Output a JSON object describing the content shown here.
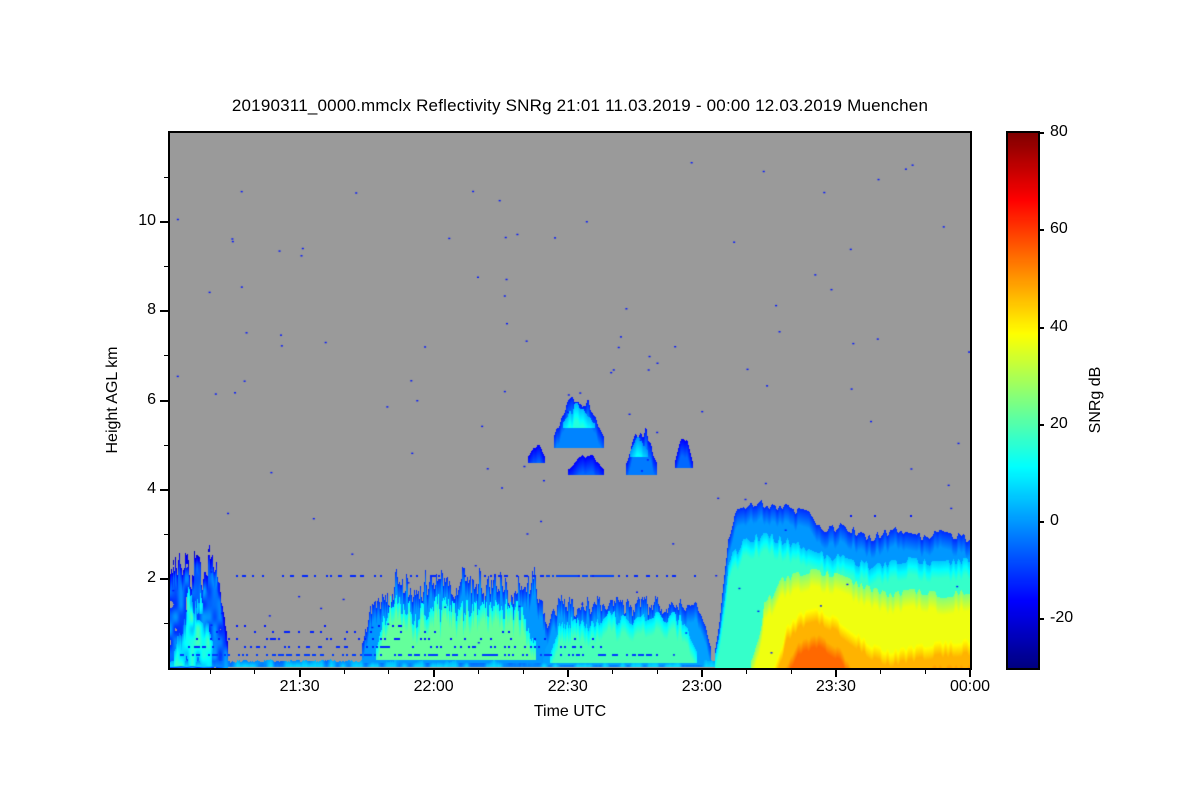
{
  "page": {
    "background": "#ffffff"
  },
  "chart_data": {
    "type": "heatmap",
    "title": "20190311_0000.mmclx Reflectivity SNRg   21:01 11.03.2019 - 00:00 12.03.2019 Muenchen",
    "xlabel": "Time UTC",
    "ylabel": "Height AGL km",
    "x_start_label": "21:01",
    "x_end_label": "00:00",
    "x_minutes_total": 179,
    "x_ticks": [
      {
        "label": "21:30",
        "t": 29
      },
      {
        "label": "22:00",
        "t": 59
      },
      {
        "label": "22:30",
        "t": 89
      },
      {
        "label": "23:00",
        "t": 119
      },
      {
        "label": "23:30",
        "t": 149
      },
      {
        "label": "00:00",
        "t": 179
      }
    ],
    "x_minor_every_min": 10,
    "y_km": [
      0,
      12
    ],
    "y_ticks": [
      2,
      4,
      6,
      8,
      10
    ],
    "y_minor_every_km": 1,
    "no_signal_color": "#9a9a9a",
    "frame_color": "#000000",
    "colorbar": {
      "label": "SNRg dB",
      "min": -30,
      "max": 80,
      "ticks": [
        80,
        60,
        40,
        20,
        0,
        -20
      ],
      "colormap": "jet"
    },
    "speckle": {
      "count": 120,
      "value": -14,
      "seed": 11
    },
    "features": [
      {
        "name": "left-plume-blue",
        "kind": "cloud",
        "t0": 0,
        "t1": 13,
        "hBot": 0.0,
        "hTop": 2.3,
        "topJag": 0.7,
        "v": -6,
        "vVar": 8,
        "gap": 0.15
      },
      {
        "name": "left-plume-cyan",
        "kind": "cloud",
        "t0": 1,
        "t1": 10,
        "hBot": 0.05,
        "hTop": 1.5,
        "topJag": 0.5,
        "v": 10,
        "vVar": 9,
        "gap": 0.25
      },
      {
        "name": "surface-layer",
        "kind": "cloud",
        "t0": 0,
        "t1": 179,
        "hBot": 0.03,
        "hTop": 0.17,
        "topJag": 0.05,
        "v": 6,
        "vVar": 9,
        "gap": 0.08
      },
      {
        "name": "cluster-a-blue",
        "kind": "cloud",
        "t0": 43,
        "t1": 85,
        "hBot": 0.12,
        "hTop": 1.8,
        "topJag": 0.6,
        "v": -7,
        "vVar": 7,
        "gap": 0.12
      },
      {
        "name": "cluster-a-cyan",
        "kind": "cloud",
        "t0": 46,
        "t1": 82,
        "hBot": 0.18,
        "hTop": 1.3,
        "topJag": 0.45,
        "v": 13,
        "vVar": 9,
        "gap": 0.2
      },
      {
        "name": "cluster-b-blue",
        "kind": "cloud",
        "t0": 83,
        "t1": 121,
        "hBot": 0.08,
        "hTop": 1.35,
        "topJag": 0.35,
        "v": -6,
        "vVar": 7,
        "gap": 0.12
      },
      {
        "name": "cluster-b-cyan",
        "kind": "cloud",
        "t0": 85,
        "t1": 118,
        "hBot": 0.12,
        "hTop": 1.0,
        "topJag": 0.3,
        "v": 11,
        "vVar": 8,
        "gap": 0.2
      },
      {
        "name": "mid-blob-1",
        "kind": "cloud",
        "t0": 80,
        "t1": 84,
        "hBot": 4.6,
        "hTop": 4.95,
        "topJag": 0.15,
        "v": -10,
        "vVar": 5,
        "gap": 0.1
      },
      {
        "name": "mid-blob-main",
        "kind": "cloud",
        "t0": 86,
        "t1": 97,
        "hBot": 4.95,
        "hTop": 5.85,
        "topJag": 0.25,
        "v": -8,
        "vVar": 6,
        "gap": 0.1
      },
      {
        "name": "mid-blob-main-cyan",
        "kind": "cloud",
        "t0": 88,
        "t1": 95,
        "hBot": 5.4,
        "hTop": 5.75,
        "topJag": 0.2,
        "v": 8,
        "vVar": 7,
        "gap": 0.25
      },
      {
        "name": "mid-bits",
        "kind": "cloud",
        "t0": 89,
        "t1": 97,
        "hBot": 4.35,
        "hTop": 4.7,
        "topJag": 0.12,
        "v": -10,
        "vVar": 5,
        "gap": 0.3
      },
      {
        "name": "mid-blob-2",
        "kind": "cloud",
        "t0": 102,
        "t1": 109,
        "hBot": 4.35,
        "hTop": 5.15,
        "topJag": 0.25,
        "v": -9,
        "vVar": 6,
        "gap": 0.12
      },
      {
        "name": "mid-blob-2-cyan",
        "kind": "cloud",
        "t0": 103,
        "t1": 107,
        "hBot": 4.75,
        "hTop": 5.05,
        "topJag": 0.15,
        "v": 5,
        "vVar": 6,
        "gap": 0.3
      },
      {
        "name": "mid-blob-3",
        "kind": "cloud",
        "t0": 113,
        "t1": 117,
        "hBot": 4.5,
        "hTop": 5.0,
        "topJag": 0.15,
        "v": -10,
        "vVar": 5,
        "gap": 0.15
      },
      {
        "name": "system-blue",
        "kind": "cloud",
        "t0": 122,
        "t1": 179,
        "hBot": 0.0,
        "topJag": 0.18,
        "v": -7,
        "vVar": 7,
        "gap": 0.05,
        "shear": 2.5,
        "topPts": [
          [
            122,
            1.6
          ],
          [
            124,
            2.6
          ],
          [
            127,
            3.45
          ],
          [
            132,
            3.6
          ],
          [
            138,
            3.5
          ],
          [
            143,
            3.35
          ],
          [
            147,
            3.0
          ],
          [
            151,
            3.1
          ],
          [
            156,
            2.8
          ],
          [
            162,
            3.0
          ],
          [
            168,
            2.85
          ],
          [
            173,
            2.95
          ],
          [
            179,
            2.8
          ]
        ]
      },
      {
        "name": "system-cyan",
        "kind": "cloud",
        "t0": 122,
        "t1": 179,
        "hBot": 0.0,
        "topJag": 0.2,
        "v": 9,
        "vVar": 8,
        "gap": 0.1,
        "shear": 3,
        "topPts": [
          [
            122,
            1.2
          ],
          [
            125,
            2.3
          ],
          [
            129,
            2.8
          ],
          [
            134,
            2.85
          ],
          [
            139,
            2.7
          ],
          [
            145,
            2.45
          ],
          [
            151,
            2.35
          ],
          [
            158,
            2.15
          ],
          [
            165,
            2.3
          ],
          [
            172,
            2.2
          ],
          [
            179,
            2.3
          ]
        ]
      },
      {
        "name": "system-green",
        "kind": "cloud",
        "t0": 130,
        "t1": 179,
        "hBot": 0.0,
        "topJag": 0.2,
        "v": 28,
        "vVar": 9,
        "gap": 0.12,
        "shear": 3.5,
        "topPts": [
          [
            130,
            0.5
          ],
          [
            133,
            1.3
          ],
          [
            137,
            1.85
          ],
          [
            143,
            2.05
          ],
          [
            149,
            1.95
          ],
          [
            155,
            1.7
          ],
          [
            161,
            1.5
          ],
          [
            167,
            1.6
          ],
          [
            173,
            1.5
          ],
          [
            179,
            1.6
          ]
        ]
      },
      {
        "name": "system-yellow",
        "kind": "cloud",
        "t0": 135,
        "t1": 179,
        "hBot": 0.0,
        "topJag": 0.15,
        "v": 40,
        "vVar": 7,
        "gap": 0.1,
        "shear": 4,
        "topPts": [
          [
            135,
            0.35
          ],
          [
            138,
            0.9
          ],
          [
            141,
            1.2
          ],
          [
            145,
            1.3
          ],
          [
            149,
            1.1
          ],
          [
            153,
            0.8
          ],
          [
            157,
            0.5
          ],
          [
            161,
            0.35
          ],
          [
            166,
            0.45
          ],
          [
            172,
            0.55
          ],
          [
            179,
            0.6
          ]
        ]
      },
      {
        "name": "system-orange",
        "kind": "cloud",
        "t0": 137,
        "t1": 153,
        "hBot": 0.0,
        "topJag": 0.1,
        "v": 50,
        "vVar": 5,
        "gap": 0.1,
        "topPts": [
          [
            137,
            0.25
          ],
          [
            141,
            0.65
          ],
          [
            145,
            0.8
          ],
          [
            149,
            0.55
          ],
          [
            153,
            0.3
          ]
        ]
      },
      {
        "name": "system-orange-right",
        "kind": "cloud",
        "t0": 168,
        "t1": 179,
        "hBot": 0.0,
        "hTop": 0.25,
        "topJag": 0.1,
        "v": 46,
        "vVar": 5,
        "gap": 0.15
      },
      {
        "name": "above-system-specks",
        "kind": "dotline",
        "t0": 146,
        "t1": 168,
        "h": 3.4,
        "density": 0.2,
        "v": -14
      },
      {
        "name": "line-2km",
        "kind": "dotline",
        "t0": 14,
        "t1": 118,
        "h": 2.06,
        "density": 0.3,
        "v": -12
      },
      {
        "name": "line-2km-dense",
        "kind": "dotline",
        "t0": 84,
        "t1": 99,
        "h": 2.06,
        "density": 0.75,
        "v": -9
      },
      {
        "name": "surface-dots-1",
        "kind": "dotline",
        "t0": 2,
        "t1": 110,
        "h": 0.3,
        "density": 0.45,
        "v": -10
      },
      {
        "name": "surface-dots-2",
        "kind": "dotline",
        "t0": 4,
        "t1": 100,
        "h": 0.48,
        "density": 0.3,
        "v": -12
      },
      {
        "name": "surface-dots-3",
        "kind": "dotline",
        "t0": 5,
        "t1": 95,
        "h": 0.64,
        "density": 0.25,
        "v": -13
      },
      {
        "name": "surface-dots-4",
        "kind": "dotline",
        "t0": 8,
        "t1": 90,
        "h": 0.8,
        "density": 0.2,
        "v": -13
      },
      {
        "name": "surface-dots-5",
        "kind": "dotline",
        "t0": 10,
        "t1": 70,
        "h": 0.95,
        "density": 0.15,
        "v": -14
      }
    ]
  }
}
